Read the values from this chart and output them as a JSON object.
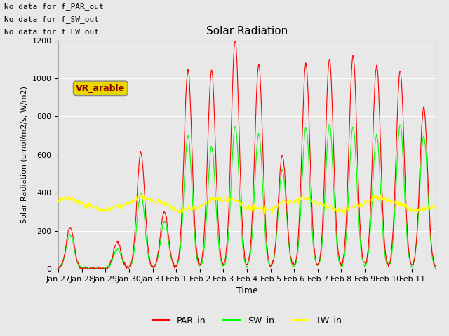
{
  "title": "Solar Radiation",
  "ylabel": "Solar Radiation (umol/m2/s, W/m2)",
  "xlabel": "Time",
  "ylim": [
    0,
    1200
  ],
  "background_color": "#e8e8e8",
  "plot_bg_color": "#e8e8e8",
  "grid_color": "white",
  "text_annotations": [
    "No data for f_PAR_out",
    "No data for f_SW_out",
    "No data for f_LW_out"
  ],
  "vr_arable_label": "VR_arable",
  "xtick_labels": [
    "Jan 27",
    "Jan 28",
    "Jan 29",
    "Jan 30",
    "Jan 31",
    "Feb 1",
    "Feb 2",
    "Feb 3",
    "Feb 4",
    "Feb 5",
    "Feb 6",
    "Feb 7",
    "Feb 8",
    "Feb 9",
    "Feb 10",
    "Feb 11"
  ],
  "legend_entries": [
    "PAR_in",
    "SW_in",
    "LW_in"
  ],
  "par_color": "red",
  "sw_color": "lime",
  "lw_color": "yellow",
  "lw_base": 330,
  "lw_amplitude": 30,
  "par_day_peaks": [
    220,
    0,
    140,
    610,
    300,
    1050,
    1040,
    1200,
    1075,
    600,
    1080,
    1100,
    1120,
    1070,
    1040,
    850
  ],
  "sw_day_peaks": [
    180,
    0,
    100,
    400,
    250,
    700,
    640,
    750,
    715,
    520,
    740,
    760,
    750,
    700,
    760,
    700
  ],
  "n_days": 16,
  "seed": 42
}
